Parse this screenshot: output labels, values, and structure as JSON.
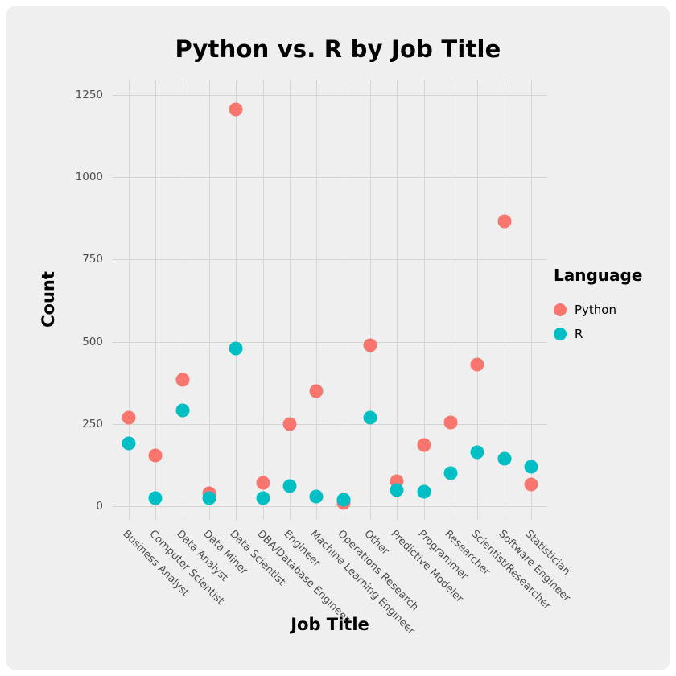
{
  "chart_data": {
    "type": "scatter",
    "title": "Python vs. R by Job Title",
    "xlabel": "Job Title",
    "ylabel": "Count",
    "legend_title": "Language",
    "legend_position": "right",
    "grid": true,
    "ylim": [
      0,
      1250
    ],
    "yticks": [
      0,
      250,
      500,
      750,
      1000,
      1250
    ],
    "categories": [
      "Business Analyst",
      "Computer Scientist",
      "Data Analyst",
      "Data Miner",
      "Data Scientist",
      "DBA/Database Engineer",
      "Engineer",
      "Machine Learning Engineer",
      "Operations Research",
      "Other",
      "Predictive Modeler",
      "Programmer",
      "Researcher",
      "Scientist/Researcher",
      "Software Engineer",
      "Statistician"
    ],
    "series": [
      {
        "name": "Python",
        "color": "#F8766D",
        "values": [
          270,
          155,
          385,
          40,
          1205,
          70,
          250,
          350,
          10,
          490,
          75,
          185,
          255,
          430,
          865,
          65
        ]
      },
      {
        "name": "R",
        "color": "#00BFC4",
        "values": [
          190,
          25,
          290,
          25,
          480,
          25,
          60,
          30,
          20,
          270,
          50,
          45,
          100,
          165,
          145,
          120
        ]
      }
    ]
  }
}
